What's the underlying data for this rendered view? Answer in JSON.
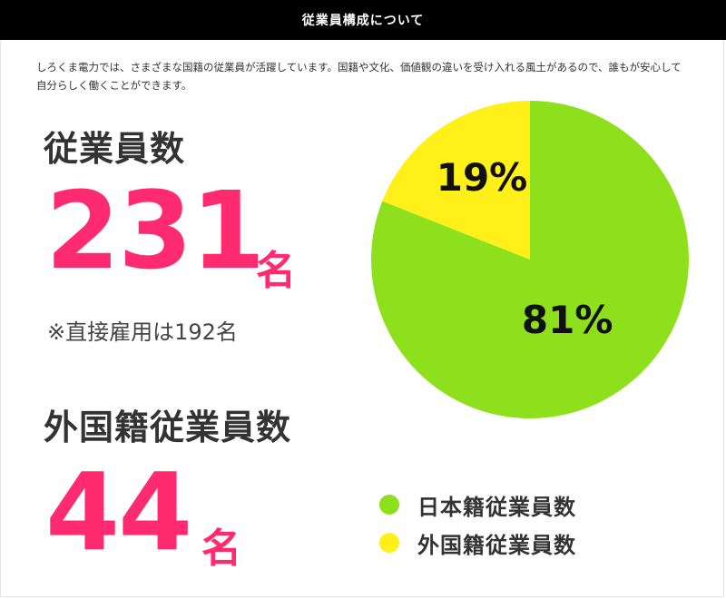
{
  "header": {
    "title": "従業員構成について"
  },
  "intro": {
    "text": "しろくま電力では、さまざまな国籍の従業員が活躍しています。国籍や文化、価値観の違いを受け入れる風土があるので、誰もが安心して自分らしく働くことができます。"
  },
  "employees": {
    "label": "従業員数",
    "count": "231",
    "unit": "名",
    "note": "※直接雇用は192名"
  },
  "foreign_employees": {
    "label": "外国籍従業員数",
    "count": "44",
    "unit": "名"
  },
  "colors": {
    "accent": "#ff2a6f",
    "japanese": "#8ee01c",
    "foreign": "#fff01a"
  },
  "chart_data": {
    "type": "pie",
    "slices": [
      {
        "name": "日本籍従業員数",
        "value": 81,
        "label": "81%",
        "color": "#8ee01c"
      },
      {
        "name": "外国籍従業員数",
        "value": 19,
        "label": "19%",
        "color": "#fff01a"
      }
    ],
    "legend": [
      {
        "label": "日本籍従業員数",
        "color": "#8ee01c"
      },
      {
        "label": "外国籍従業員数",
        "color": "#fff01a"
      }
    ],
    "legend_position": "bottom-right"
  }
}
